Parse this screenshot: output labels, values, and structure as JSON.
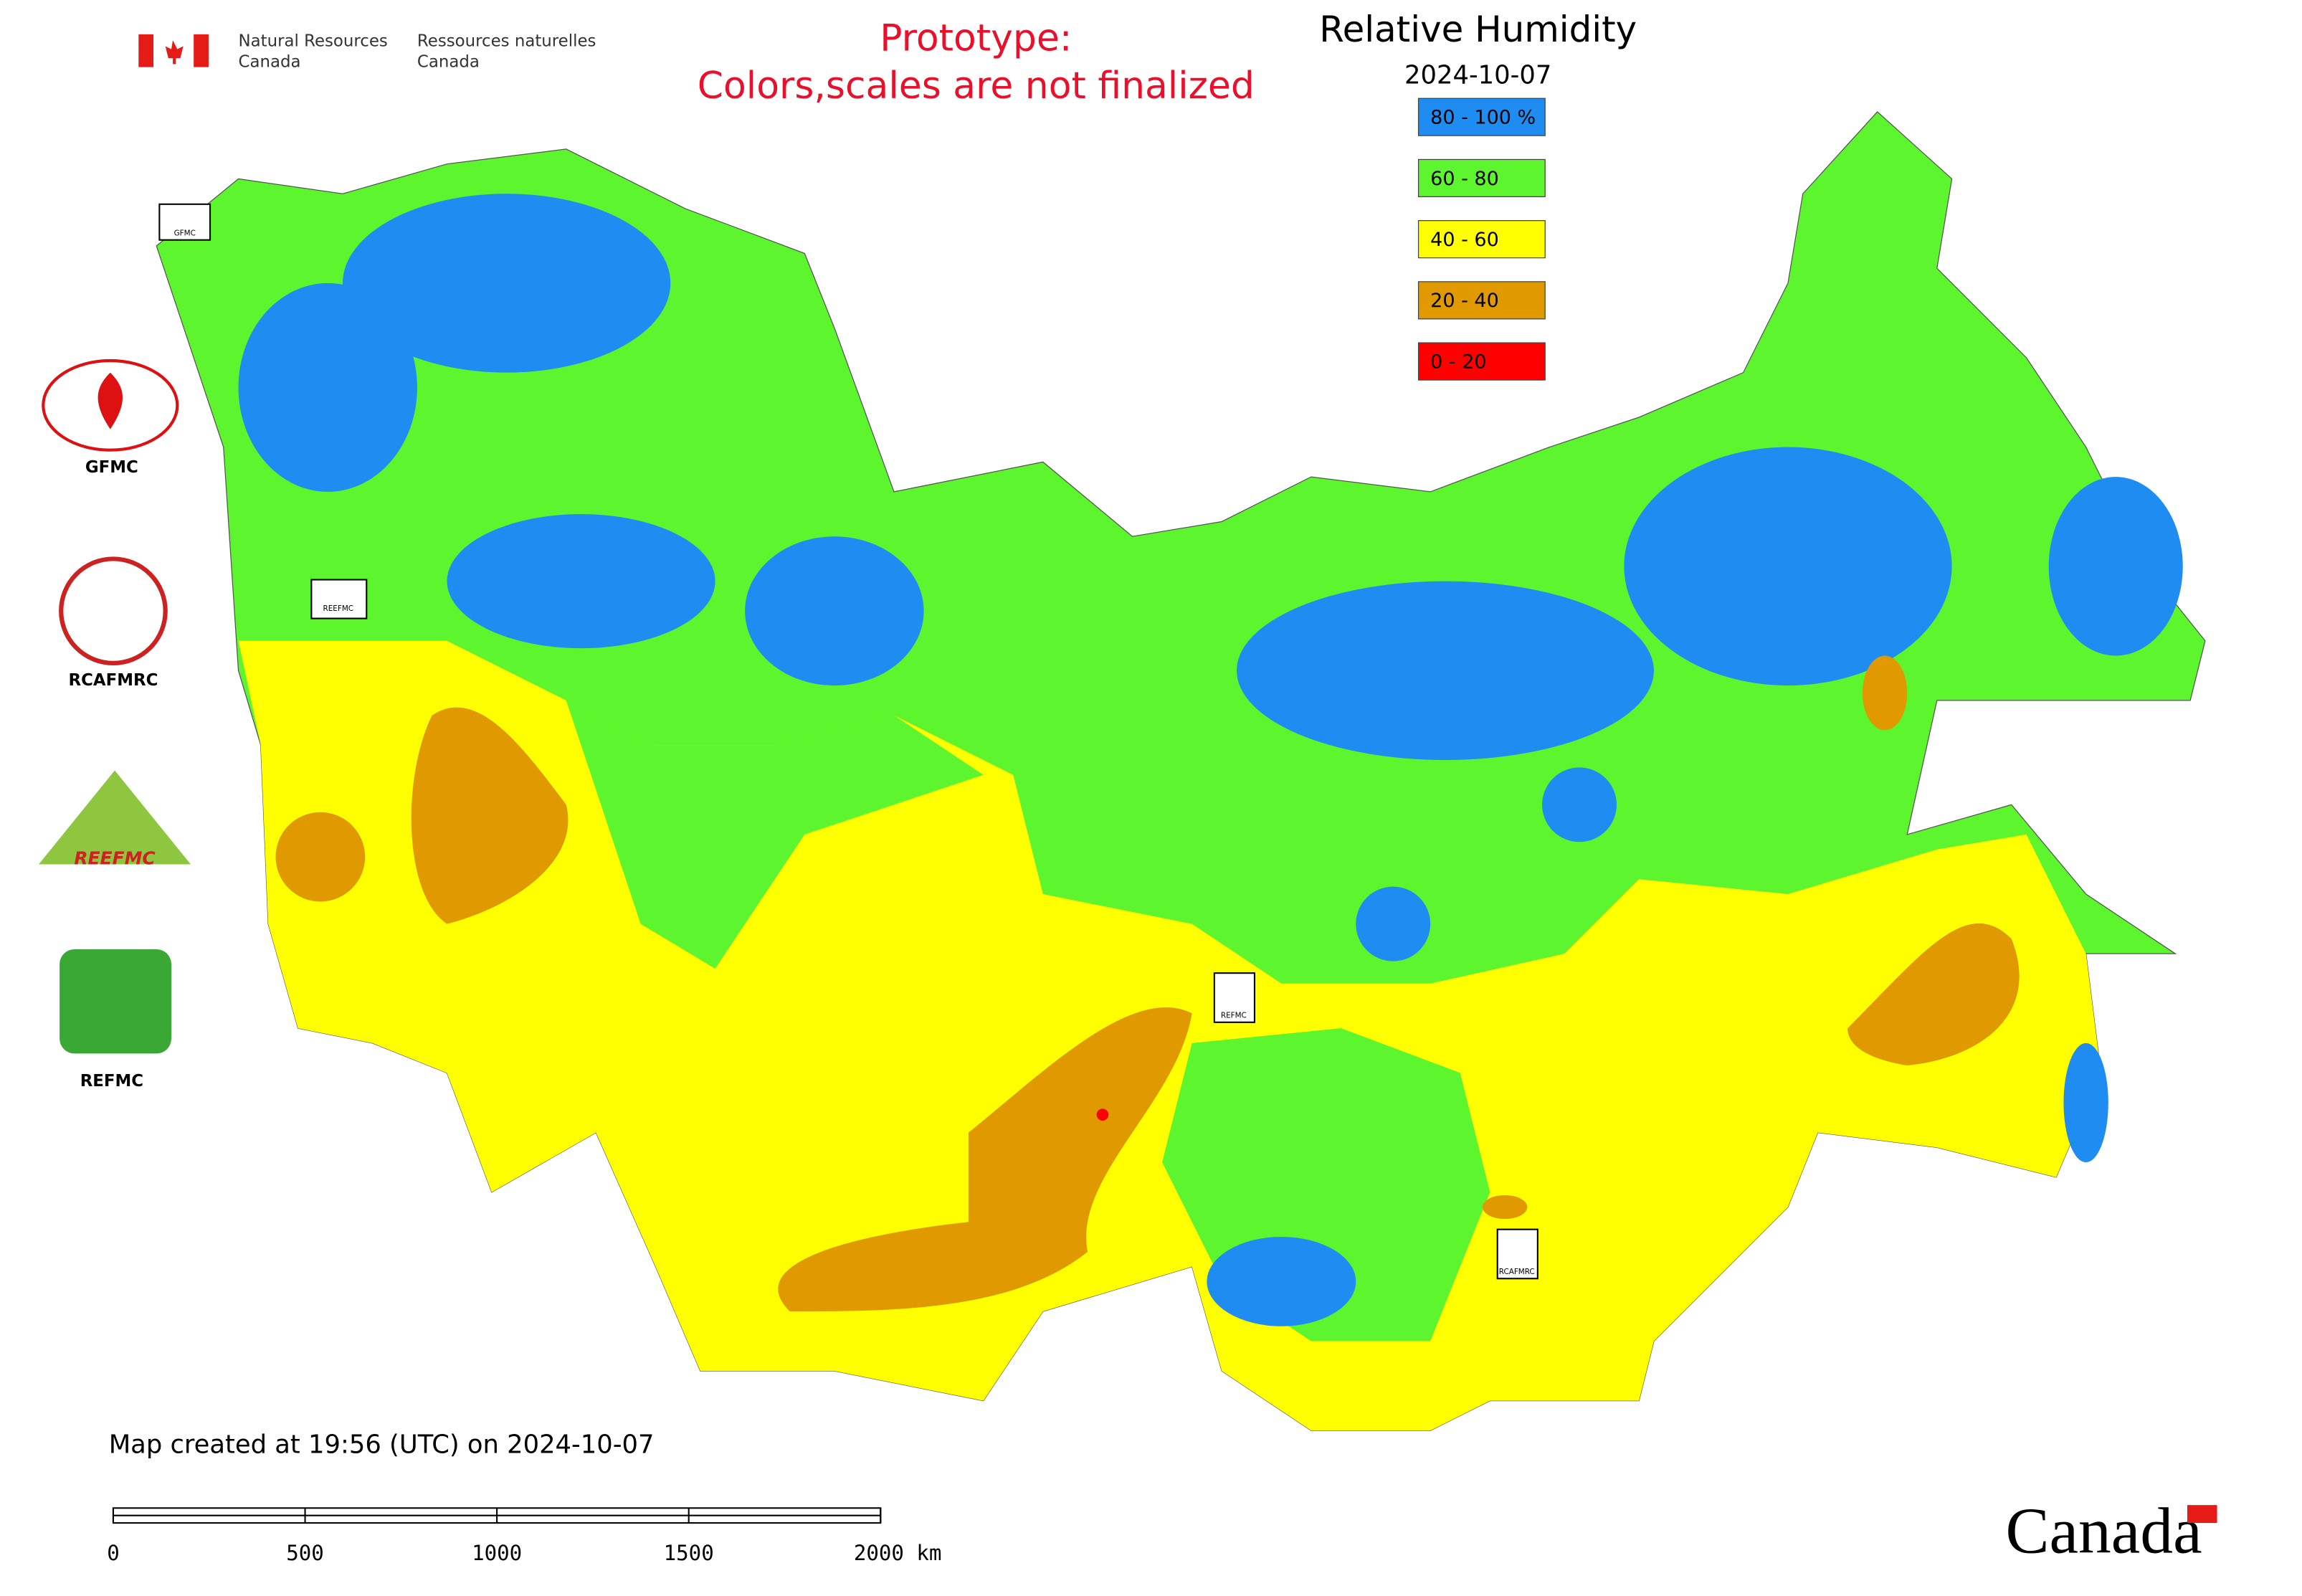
{
  "agency": {
    "en_line1": "Natural Resources",
    "en_line2": "Canada",
    "fr_line1": "Ressources naturelles",
    "fr_line2": "Canada"
  },
  "notice": [
    "Prototype:",
    "Colors,scales are not finalized"
  ],
  "title": "Relative Humidity",
  "date": "2024-10-07",
  "legend": [
    {
      "label": "80 - 100 %",
      "color": "#1e8cf0"
    },
    {
      "label": "60 - 80",
      "color": "#5cf52e"
    },
    {
      "label": "40 - 60",
      "color": "#ffff00"
    },
    {
      "label": "20 - 40",
      "color": "#e09a00"
    },
    {
      "label": "0 - 20",
      "color": "#ff0000"
    }
  ],
  "logos": [
    "GFMC",
    "RCAFMRC",
    "REEFMC",
    "REFMC"
  ],
  "map_markers": [
    "GFMC",
    "REEFMC",
    "REFMC",
    "RCAFMRC"
  ],
  "footer": "Map created at 19:56 (UTC) on 2024-10-07",
  "scale_bar": [
    "0",
    "500",
    "1000",
    "1500",
    "2000 km"
  ],
  "wordmark": "Canada"
}
